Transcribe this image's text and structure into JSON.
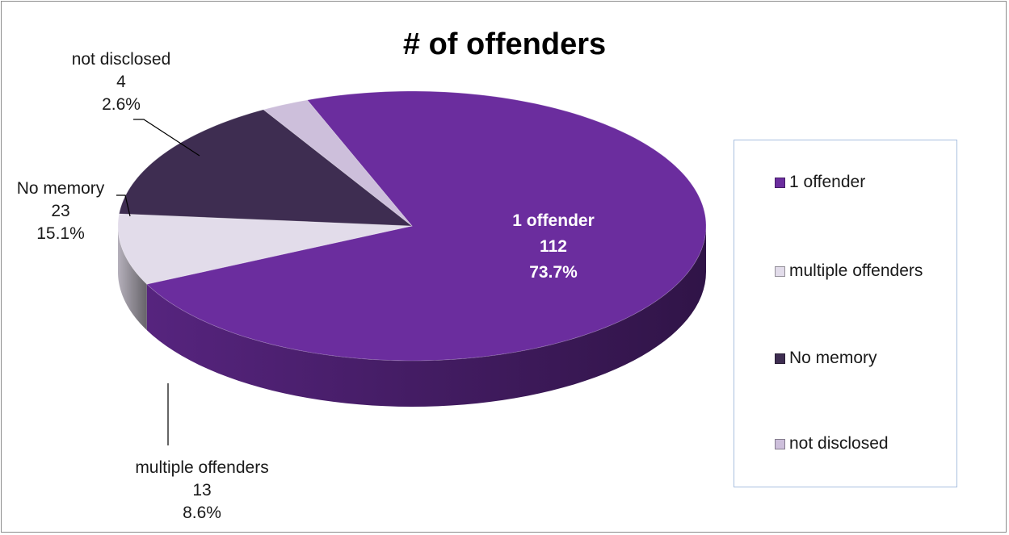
{
  "chart_data": {
    "type": "pie",
    "title": "# of offenders",
    "slices": [
      {
        "label": "1 offender",
        "value": 112,
        "percent": "73.7%",
        "color": "#6b2d9e"
      },
      {
        "label": "multiple offenders",
        "value": 13,
        "percent": "8.6%",
        "color": "#e2dcea"
      },
      {
        "label": "No memory",
        "value": 23,
        "percent": "15.1%",
        "color": "#3e2d51"
      },
      {
        "label": "not disclosed",
        "value": 4,
        "percent": "2.6%",
        "color": "#cdbfdb"
      }
    ],
    "legend": {
      "position": "right",
      "entries": [
        "1 offender",
        "multiple offenders",
        "No memory",
        "not disclosed"
      ]
    }
  }
}
